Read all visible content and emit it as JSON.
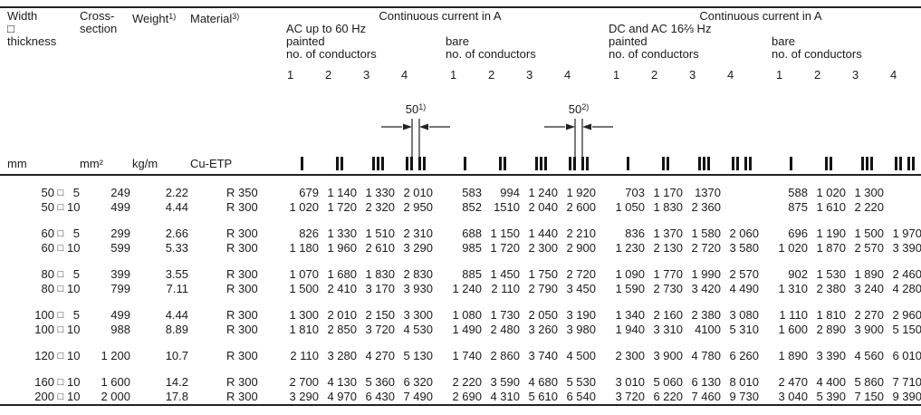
{
  "header": {
    "width_lines": [
      "Width",
      "□",
      "thickness"
    ],
    "cross_lines": [
      "Cross-",
      "section"
    ],
    "weight": {
      "label": "Weight",
      "sup": "1)"
    },
    "material": {
      "label": "Material",
      "sup": "3)"
    },
    "groups": [
      {
        "title": "Continuous current in A",
        "subtitle": "AC up to 60 Hz",
        "subgroups": [
          {
            "label": "painted",
            "cond": "no. of conductors",
            "cols": [
              "1",
              "2",
              "3",
              "4"
            ]
          },
          {
            "label": "bare",
            "cond": "no. of conductors",
            "cols": [
              "1",
              "2",
              "3",
              "4"
            ]
          }
        ]
      },
      {
        "title": "Continuous current in A",
        "subtitle": "DC and AC 16⅔ Hz",
        "subgroups": [
          {
            "label": "painted",
            "cond": "no. of conductors",
            "cols": [
              "1",
              "2",
              "3",
              "4"
            ]
          },
          {
            "label": "bare",
            "cond": "no. of conductors",
            "cols": [
              "1",
              "2",
              "3",
              "4"
            ]
          }
        ]
      }
    ]
  },
  "diagrams": [
    {
      "label": "50",
      "sup": "1)"
    },
    {
      "label": "50",
      "sup": "2)"
    }
  ],
  "units": {
    "width": "mm",
    "cross": "mm²",
    "weight": "kg/m",
    "material": "Cu-ETP"
  },
  "icons": {
    "patterns": [
      "1",
      "2",
      "3",
      "2+2"
    ]
  },
  "table": {
    "size_box": "□",
    "rows": [
      {
        "w": "50",
        "t": "5",
        "gap": false,
        "cells": [
          "249",
          "2.22",
          "R 350",
          "679",
          "1 140",
          "1 330",
          "2 010",
          "583",
          "994",
          "1 240",
          "1 920",
          "703",
          "1 170",
          "1370",
          "",
          "588",
          "1 020",
          "1 300",
          ""
        ]
      },
      {
        "w": "50",
        "t": "10",
        "gap": false,
        "cells": [
          "499",
          "4.44",
          "R 300",
          "1 020",
          "1 720",
          "2 320",
          "2 950",
          "852",
          "1510",
          "2 040",
          "2 600",
          "1 050",
          "1 830",
          "2 360",
          "",
          "875",
          "1 610",
          "2 220",
          ""
        ]
      },
      {
        "w": "60",
        "t": "5",
        "gap": true,
        "cells": [
          "299",
          "2.66",
          "R 300",
          "826",
          "1 330",
          "1 510",
          "2 310",
          "688",
          "1 150",
          "1 440",
          "2 210",
          "836",
          "1 370",
          "1 580",
          "2 060",
          "696",
          "1 190",
          "1 500",
          "1 970"
        ]
      },
      {
        "w": "60",
        "t": "10",
        "gap": false,
        "cells": [
          "599",
          "5.33",
          "R 300",
          "1 180",
          "1 960",
          "2 610",
          "3 290",
          "985",
          "1 720",
          "2 300",
          "2 900",
          "1 230",
          "2 130",
          "2 720",
          "3 580",
          "1 020",
          "1 870",
          "2 570",
          "3 390"
        ]
      },
      {
        "w": "80",
        "t": "5",
        "gap": true,
        "cells": [
          "399",
          "3.55",
          "R 300",
          "1 070",
          "1 680",
          "1 830",
          "2 830",
          "885",
          "1 450",
          "1 750",
          "2 720",
          "1 090",
          "1 770",
          "1 990",
          "2 570",
          "902",
          "1 530",
          "1 890",
          "2 460"
        ]
      },
      {
        "w": "80",
        "t": "10",
        "gap": false,
        "cells": [
          "799",
          "7.11",
          "R 300",
          "1 500",
          "2 410",
          "3 170",
          "3 930",
          "1 240",
          "2 110",
          "2 790",
          "3 450",
          "1 590",
          "2 730",
          "3 420",
          "4 490",
          "1 310",
          "2 380",
          "3 240",
          "4 280"
        ]
      },
      {
        "w": "100",
        "t": "5",
        "gap": true,
        "cells": [
          "499",
          "4.44",
          "R 300",
          "1 300",
          "2 010",
          "2 150",
          "3 300",
          "1 080",
          "1 730",
          "2 050",
          "3 190",
          "1 340",
          "2 160",
          "2 380",
          "3 080",
          "1 110",
          "1 810",
          "2 270",
          "2 960"
        ]
      },
      {
        "w": "100",
        "t": "10",
        "gap": false,
        "cells": [
          "988",
          "8.89",
          "R 300",
          "1 810",
          "2 850",
          "3 720",
          "4 530",
          "1 490",
          "2 480",
          "3 260",
          "3 980",
          "1 940",
          "3 310",
          "4100",
          "5 310",
          "1 600",
          "2 890",
          "3 900",
          "5 150"
        ]
      },
      {
        "w": "120",
        "t": "10",
        "gap": true,
        "cells": [
          "1 200",
          "10.7",
          "R 300",
          "2 110",
          "3 280",
          "4 270",
          "5 130",
          "1 740",
          "2 860",
          "3 740",
          "4 500",
          "2 300",
          "3 900",
          "4 780",
          "6 260",
          "1 890",
          "3 390",
          "4 560",
          "6 010"
        ]
      },
      {
        "w": "160",
        "t": "10",
        "gap": true,
        "cells": [
          "1 600",
          "14.2",
          "R 300",
          "2 700",
          "4 130",
          "5 360",
          "6 320",
          "2 220",
          "3 590",
          "4 680",
          "5 530",
          "3 010",
          "5 060",
          "6 130",
          "8 010",
          "2 470",
          "4 400",
          "5 860",
          "7 710"
        ]
      },
      {
        "w": "200",
        "t": "10",
        "gap": false,
        "cells": [
          "2 000",
          "17.8",
          "R 300",
          "3 290",
          "4 970",
          "6 430",
          "7 490",
          "2 690",
          "4 310",
          "5 610",
          "6 540",
          "3 720",
          "6 220",
          "7 460",
          "9 730",
          "3 040",
          "5 390",
          "7 150",
          "9 390"
        ]
      }
    ]
  }
}
